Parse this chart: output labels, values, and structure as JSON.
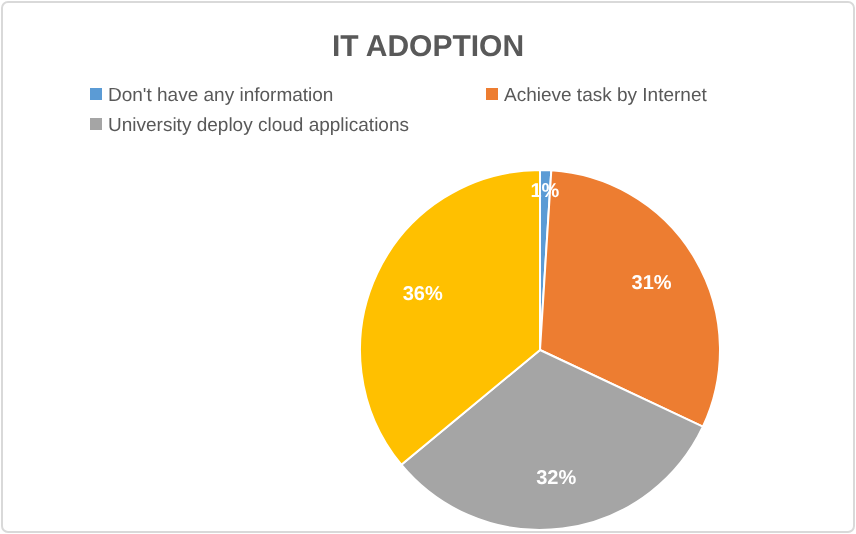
{
  "chart_data": {
    "type": "pie",
    "title": "IT ADOPTION",
    "categories": [
      "Don't have any information",
      "Achieve task by Internet",
      "University deploy cloud applications",
      null
    ],
    "values": [
      1,
      31,
      32,
      36
    ],
    "colors": [
      "#5b9bd5",
      "#ed7d31",
      "#a5a5a5",
      "#ffc000"
    ],
    "value_labels": [
      "1%",
      "31%",
      "32%",
      "36%"
    ],
    "legend": "top"
  }
}
